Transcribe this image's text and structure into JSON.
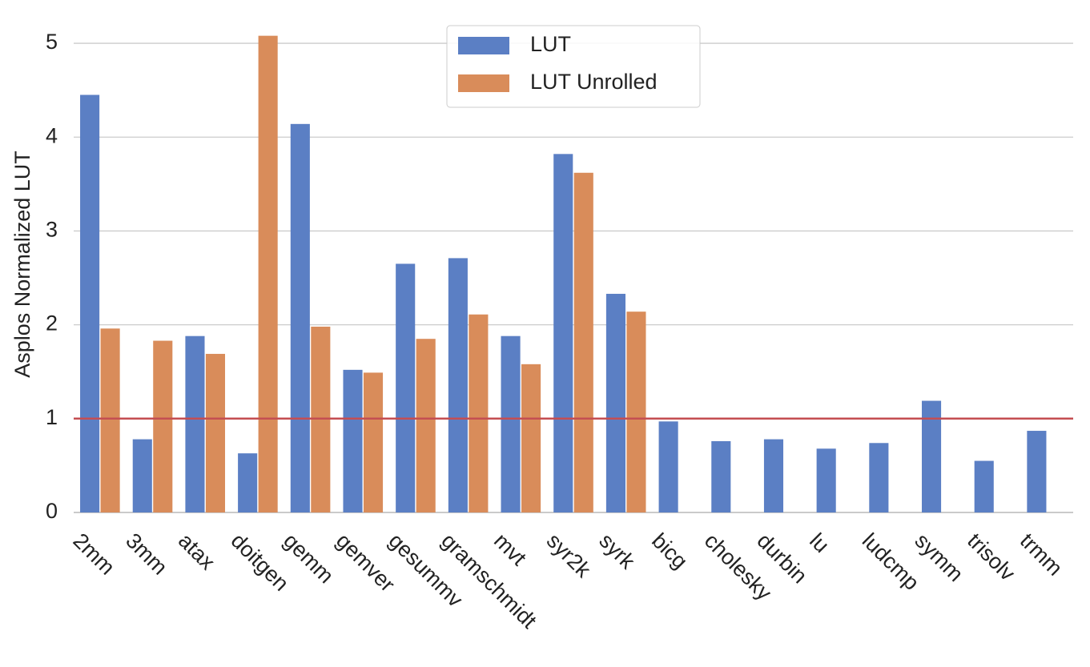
{
  "chart_data": {
    "type": "bar",
    "ylabel": "Asplos Normalized LUT",
    "categories": [
      "2mm",
      "3mm",
      "atax",
      "doitgen",
      "gemm",
      "gemver",
      "gesummv",
      "gramschmidt",
      "mvt",
      "syr2k",
      "syrk",
      "bicg",
      "cholesky",
      "durbin",
      "lu",
      "ludcmp",
      "symm",
      "trisolv",
      "trmm"
    ],
    "series": [
      {
        "name": "LUT",
        "color": "#5b7fc4",
        "values": [
          4.45,
          0.78,
          1.88,
          0.63,
          4.14,
          1.52,
          2.65,
          2.71,
          1.88,
          3.82,
          2.33,
          0.97,
          0.76,
          0.78,
          0.68,
          0.74,
          1.19,
          0.55,
          0.87
        ]
      },
      {
        "name": "LUT Unrolled",
        "color": "#d98c5a",
        "values": [
          1.96,
          1.83,
          1.69,
          5.08,
          1.98,
          1.49,
          1.85,
          2.11,
          1.58,
          3.62,
          2.14,
          null,
          null,
          null,
          null,
          null,
          null,
          null,
          null
        ]
      }
    ],
    "reference_line": {
      "value": 1,
      "color": "#c44e52"
    },
    "ylim": [
      0,
      5.2
    ],
    "yticks": [
      0,
      1,
      2,
      3,
      4,
      5
    ],
    "grid": true,
    "legend": "upper center"
  }
}
